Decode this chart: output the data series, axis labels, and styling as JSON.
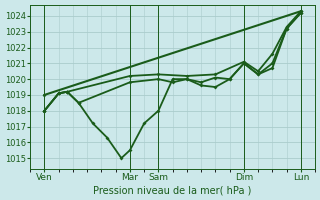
{
  "title": "Pression niveau de la mer( hPa )",
  "bg_color": "#cce8ea",
  "grid_color": "#aacccc",
  "line_color": "#1a5c1a",
  "xlim": [
    0,
    10
  ],
  "ylim": [
    1014.3,
    1024.7
  ],
  "yticks": [
    1015,
    1016,
    1017,
    1018,
    1019,
    1020,
    1021,
    1022,
    1023,
    1024
  ],
  "xtick_positions": [
    0.5,
    3.5,
    4.5,
    7.5,
    9.5
  ],
  "xtick_labels": [
    "Ven",
    "Mar",
    "Sam",
    "Dim",
    "Lun"
  ],
  "vlines": [
    0.5,
    3.5,
    4.5,
    7.5,
    9.5
  ],
  "series": [
    {
      "x": [
        0.5,
        1.0,
        1.3,
        1.7,
        2.2,
        2.7,
        3.2,
        3.5,
        4.0,
        4.5,
        5.0,
        5.5,
        6.0,
        6.5,
        7.0,
        7.5,
        8.0,
        8.5,
        9.0,
        9.5
      ],
      "y": [
        1018.0,
        1019.1,
        1019.2,
        1018.5,
        1017.2,
        1016.3,
        1015.0,
        1015.5,
        1017.2,
        1018.0,
        1020.0,
        1020.0,
        1019.6,
        1019.5,
        1020.0,
        1021.0,
        1020.3,
        1021.0,
        1023.2,
        1024.2
      ],
      "lw": 1.3
    },
    {
      "x": [
        0.5,
        1.0,
        1.3,
        1.7,
        3.5,
        4.5,
        5.0,
        5.5,
        6.0,
        6.5,
        7.0,
        7.5,
        8.0,
        8.5,
        9.0,
        9.5
      ],
      "y": [
        1018.0,
        1019.1,
        1019.2,
        1018.5,
        1019.8,
        1020.0,
        1019.8,
        1020.0,
        1019.8,
        1020.1,
        1020.0,
        1021.0,
        1020.3,
        1020.7,
        1023.2,
        1024.2
      ],
      "lw": 1.3
    },
    {
      "x": [
        0.5,
        1.0,
        1.3,
        3.5,
        4.5,
        5.5,
        6.5,
        7.5,
        8.0,
        8.5,
        9.0,
        9.5
      ],
      "y": [
        1018.0,
        1019.1,
        1019.2,
        1020.2,
        1020.3,
        1020.2,
        1020.3,
        1021.1,
        1020.5,
        1021.6,
        1023.3,
        1024.3
      ],
      "lw": 1.3
    },
    {
      "x": [
        0.5,
        9.5
      ],
      "y": [
        1019.0,
        1024.3
      ],
      "lw": 1.5
    }
  ]
}
